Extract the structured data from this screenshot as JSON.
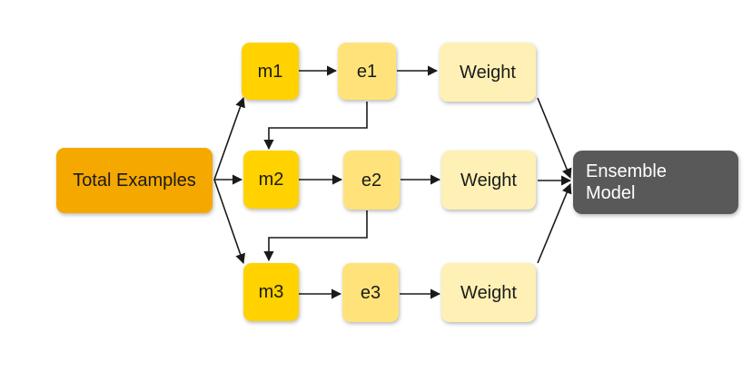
{
  "nodes": {
    "total_examples": "Total Examples",
    "m1": "m1",
    "m2": "m2",
    "m3": "m3",
    "e1": "e1",
    "e2": "e2",
    "e3": "e3",
    "weight1": "Weight",
    "weight2": "Weight",
    "weight3": "Weight",
    "ensemble": "Ensemble\nModel"
  },
  "colors": {
    "start": "#f5a800",
    "model": "#ffd200",
    "eval": "#ffe37a",
    "weight": "#fff0b5",
    "ensemble": "#595959",
    "edge": "#1a1a1a"
  }
}
